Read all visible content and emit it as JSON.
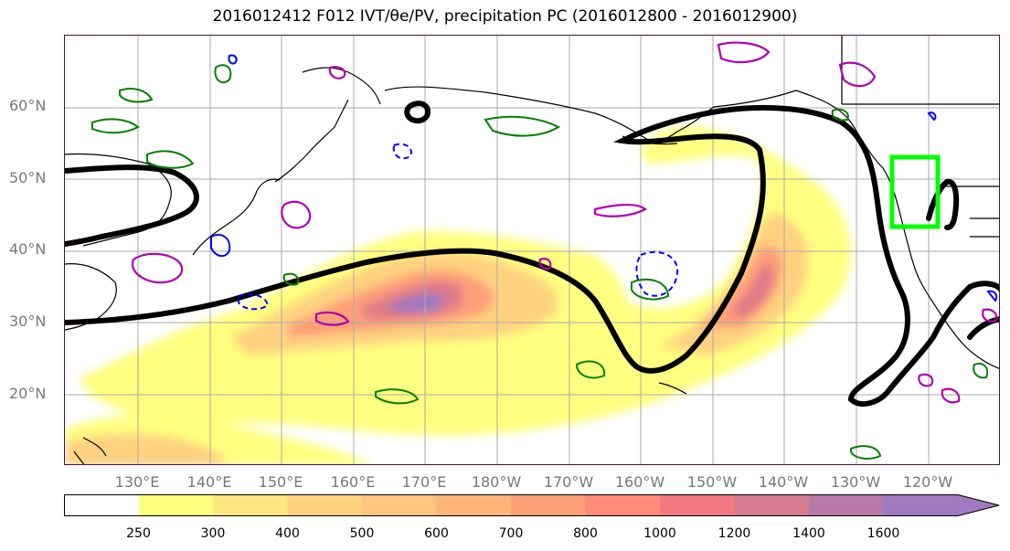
{
  "title": "2016012412 F012 IVT/θe/PV, precipitation PC (2016012800 - 2016012900)",
  "map": {
    "lat_labels": [
      "60°N",
      "50°N",
      "40°N",
      "30°N",
      "20°N"
    ],
    "lon_labels": [
      "130°E",
      "140°E",
      "150°E",
      "160°E",
      "170°E",
      "180°W",
      "170°W",
      "160°W",
      "150°W",
      "140°W",
      "130°W",
      "120°W"
    ],
    "highlight_box_color": "#00ff00",
    "contour_colors": {
      "theta_e": "#000000",
      "pv_positive": "#b000b0",
      "pv_negative": "#0000ff",
      "precip": "#008000"
    }
  },
  "colorbar": {
    "tick_labels": [
      "250",
      "300",
      "400",
      "500",
      "600",
      "700",
      "800",
      "1000",
      "1200",
      "1400",
      "1600"
    ],
    "colors": [
      "#ffffff",
      "#ffff80",
      "#ffe680",
      "#ffd280",
      "#ffc480",
      "#ffb47a",
      "#ff9f78",
      "#ff8c78",
      "#f07a80",
      "#d87a90",
      "#b87aa8",
      "#a07ac0"
    ]
  }
}
